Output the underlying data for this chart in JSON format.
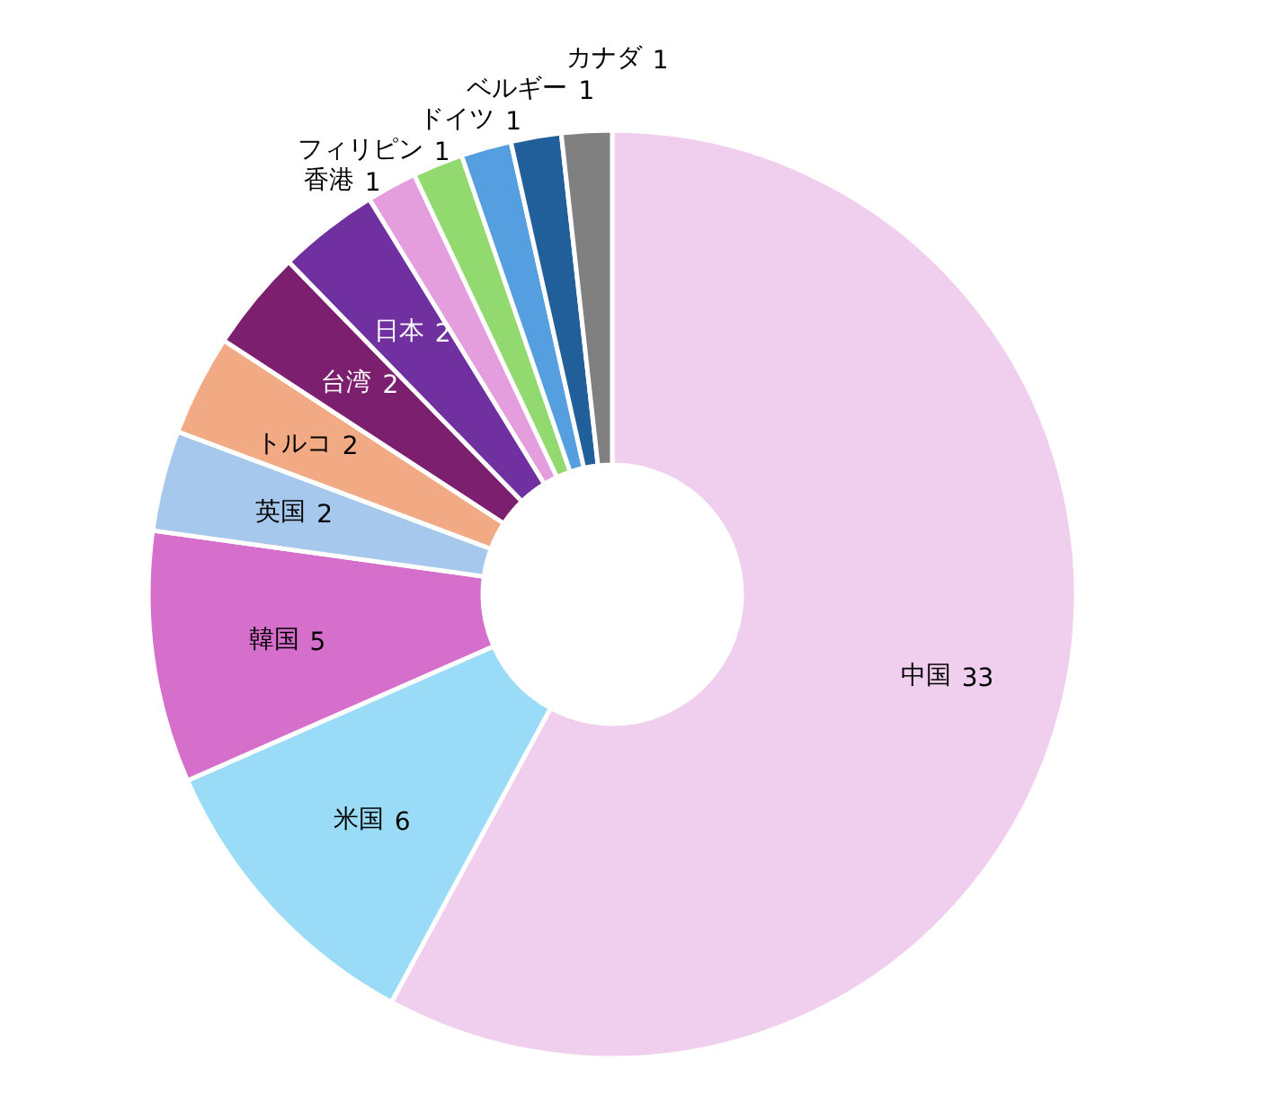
{
  "chart_data": {
    "type": "donut",
    "categories": [
      "中国",
      "米国",
      "韓国",
      "英国",
      "トルコ",
      "台湾",
      "日本",
      "香港",
      "フィリピン",
      "ドイツ",
      "ベルギー",
      "カナダ"
    ],
    "values": [
      33,
      6,
      5,
      2,
      2,
      2,
      2,
      1,
      1,
      1,
      1,
      1
    ],
    "colors": [
      "#f0cfee",
      "#9adcf7",
      "#d66fcc",
      "#a6c8ec",
      "#f2aa84",
      "#7b1f6e",
      "#7030a0",
      "#e59edd",
      "#92d970",
      "#559fe0",
      "#215f9a",
      "#808080"
    ],
    "data_labels": true
  }
}
